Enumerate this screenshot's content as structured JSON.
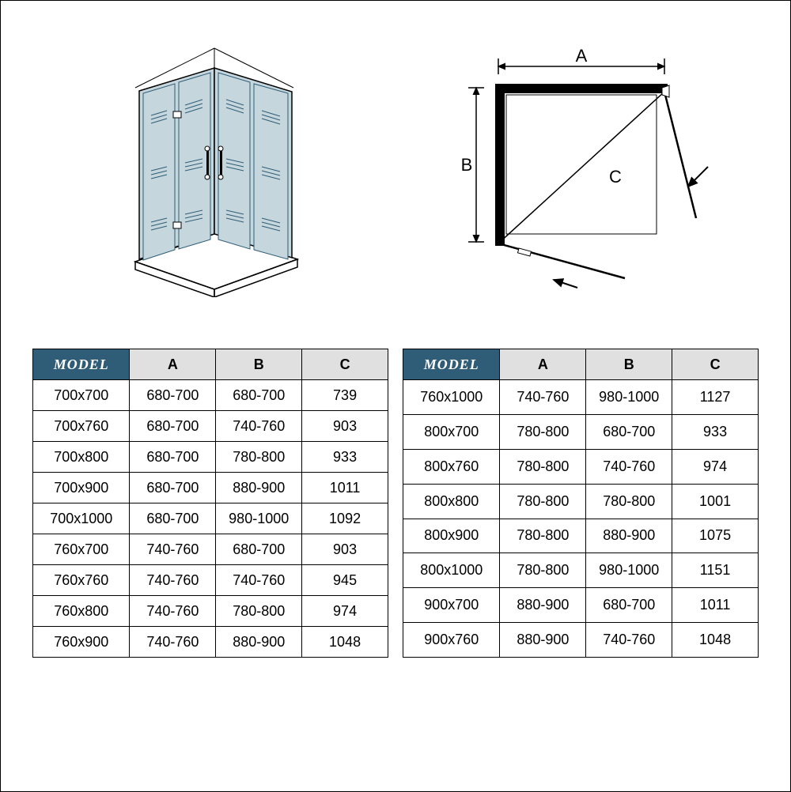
{
  "colors": {
    "header_bg": "#2f5d77",
    "sub_header_bg": "#e0e0e0",
    "border": "#000000",
    "glass_fill": "#c5d6dc",
    "glass_stroke": "#2f5d77"
  },
  "headers": {
    "model": "MODEL",
    "a": "A",
    "b": "B",
    "c": "C"
  },
  "diagram_labels": {
    "a": "A",
    "b": "B",
    "c": "C"
  },
  "table_left": [
    {
      "model": "700x700",
      "a": "680-700",
      "b": "680-700",
      "c": "739"
    },
    {
      "model": "700x760",
      "a": "680-700",
      "b": "740-760",
      "c": "903"
    },
    {
      "model": "700x800",
      "a": "680-700",
      "b": "780-800",
      "c": "933"
    },
    {
      "model": "700x900",
      "a": "680-700",
      "b": "880-900",
      "c": "1011"
    },
    {
      "model": "700x1000",
      "a": "680-700",
      "b": "980-1000",
      "c": "1092"
    },
    {
      "model": "760x700",
      "a": "740-760",
      "b": "680-700",
      "c": "903"
    },
    {
      "model": "760x760",
      "a": "740-760",
      "b": "740-760",
      "c": "945"
    },
    {
      "model": "760x800",
      "a": "740-760",
      "b": "780-800",
      "c": "974"
    },
    {
      "model": "760x900",
      "a": "740-760",
      "b": "880-900",
      "c": "1048"
    }
  ],
  "table_right": [
    {
      "model": "760x1000",
      "a": "740-760",
      "b": "980-1000",
      "c": "1127"
    },
    {
      "model": "800x700",
      "a": "780-800",
      "b": "680-700",
      "c": "933"
    },
    {
      "model": "800x760",
      "a": "780-800",
      "b": "740-760",
      "c": "974"
    },
    {
      "model": "800x800",
      "a": "780-800",
      "b": "780-800",
      "c": "1001"
    },
    {
      "model": "800x900",
      "a": "780-800",
      "b": "880-900",
      "c": "1075"
    },
    {
      "model": "800x1000",
      "a": "780-800",
      "b": "980-1000",
      "c": "1151"
    },
    {
      "model": "900x700",
      "a": "880-900",
      "b": "680-700",
      "c": "1011"
    },
    {
      "model": "900x760",
      "a": "880-900",
      "b": "740-760",
      "c": "1048"
    }
  ]
}
